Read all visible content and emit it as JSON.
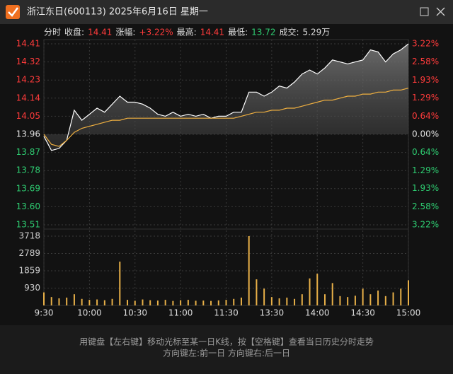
{
  "chart_data": {
    "type": "line",
    "title": "浙江东日(600113) 2025年6月16日 星期一",
    "header": [
      {
        "text": "分时",
        "color": "#dddddd"
      },
      {
        "text": "收盘:",
        "color": "#dddddd"
      },
      {
        "text": "14.41",
        "color": "#ff3b3b"
      },
      {
        "text": "涨幅:",
        "color": "#dddddd"
      },
      {
        "text": "+3.22%",
        "color": "#ff3b3b"
      },
      {
        "text": "最高:",
        "color": "#dddddd"
      },
      {
        "text": "14.41",
        "color": "#ff3b3b"
      },
      {
        "text": "最低:",
        "color": "#dddddd"
      },
      {
        "text": "13.72",
        "color": "#2ecc71"
      },
      {
        "text": "成交:",
        "color": "#dddddd"
      },
      {
        "text": "5.29万",
        "color": "#dddddd"
      }
    ],
    "footer": [
      "用键盘【左右键】移动光标至某一日K线，按【空格键】查看当日历史分时走势",
      "方向键左:前一日    方向键右:后一日"
    ],
    "up_color": "#ff3b3b",
    "down_color": "#2ecc71",
    "flat_color": "#e0e0e0",
    "x": [
      0,
      5,
      10,
      15,
      20,
      25,
      30,
      35,
      40,
      45,
      50,
      55,
      60,
      65,
      70,
      75,
      80,
      85,
      90,
      95,
      100,
      105,
      110,
      115,
      120,
      125,
      130,
      135,
      140,
      145,
      150,
      155,
      160,
      165,
      170,
      175,
      180,
      185,
      190,
      195,
      200,
      205,
      210,
      215,
      220,
      225,
      230,
      235,
      240
    ],
    "xlim": [
      0,
      240
    ],
    "xticks": [
      {
        "value": 0,
        "label": "9:30"
      },
      {
        "value": 30,
        "label": "10:00"
      },
      {
        "value": 60,
        "label": "10:30"
      },
      {
        "value": 90,
        "label": "11:00"
      },
      {
        "value": 120,
        "label": "11:30"
      },
      {
        "value": 150,
        "label": "13:30"
      },
      {
        "value": 180,
        "label": "14:00"
      },
      {
        "value": 210,
        "label": "14:30"
      },
      {
        "value": 240,
        "label": "15:00"
      }
    ],
    "ylim": [
      13.51,
      14.41
    ],
    "yticks": [
      14.41,
      14.32,
      14.23,
      14.14,
      14.05,
      13.96,
      13.87,
      13.78,
      13.69,
      {
        "value": 13.6,
        "label": "13.60"
      },
      13.51
    ],
    "y2lim": [
      -3.22,
      3.22
    ],
    "y2ticks": [
      {
        "value": 3.22,
        "label": "3.22%"
      },
      {
        "value": 2.58,
        "label": "2.58%"
      },
      {
        "value": 1.93,
        "label": "1.93%"
      },
      {
        "value": 1.29,
        "label": "1.29%"
      },
      {
        "value": 0.64,
        "label": "0.64%"
      },
      {
        "value": 0,
        "label": "0.00%"
      },
      {
        "value": -0.64,
        "label": "0.64%"
      },
      {
        "value": -1.29,
        "label": "1.29%"
      },
      {
        "value": -1.93,
        "label": "1.93%"
      },
      {
        "value": -2.58,
        "label": "2.58%"
      },
      {
        "value": -3.22,
        "label": "3.22%"
      }
    ],
    "grid": true,
    "series": [
      {
        "color": "#ffffff",
        "values": [
          13.95,
          13.88,
          13.89,
          13.93,
          14.08,
          14.03,
          14.06,
          14.09,
          14.07,
          14.11,
          14.15,
          14.12,
          14.12,
          14.11,
          14.09,
          14.06,
          14.05,
          14.07,
          14.05,
          14.06,
          14.05,
          14.06,
          14.04,
          14.05,
          14.05,
          14.07,
          14.07,
          14.17,
          14.17,
          14.15,
          14.17,
          14.2,
          14.19,
          14.22,
          14.26,
          14.28,
          14.26,
          14.29,
          14.33,
          14.32,
          14.31,
          14.32,
          14.33,
          14.38,
          14.37,
          14.32,
          14.36,
          14.38,
          14.41
        ]
      },
      {
        "color": "#f0b040",
        "values": [
          13.96,
          13.91,
          13.9,
          13.93,
          13.97,
          13.99,
          14.0,
          14.01,
          14.02,
          14.03,
          14.03,
          14.04,
          14.04,
          14.04,
          14.04,
          14.04,
          14.04,
          14.04,
          14.04,
          14.04,
          14.04,
          14.04,
          14.04,
          14.04,
          14.04,
          14.04,
          14.05,
          14.06,
          14.07,
          14.07,
          14.08,
          14.08,
          14.09,
          14.09,
          14.1,
          14.11,
          14.12,
          14.13,
          14.13,
          14.14,
          14.15,
          14.15,
          14.16,
          14.16,
          14.17,
          14.17,
          14.18,
          14.18,
          14.19
        ]
      }
    ],
    "volume": {
      "color": "#e8b048",
      "ylim": [
        0,
        3718
      ],
      "yticks": [
        3718,
        2789,
        1859,
        930
      ],
      "values": [
        700,
        450,
        380,
        420,
        600,
        350,
        300,
        320,
        280,
        350,
        2350,
        300,
        250,
        320,
        280,
        260,
        300,
        240,
        280,
        300,
        250,
        260,
        240,
        270,
        300,
        350,
        420,
        3718,
        1400,
        900,
        450,
        380,
        420,
        350,
        600,
        1450,
        1700,
        600,
        1200,
        500,
        450,
        520,
        900,
        600,
        800,
        500,
        700,
        900,
        1350
      ]
    }
  }
}
